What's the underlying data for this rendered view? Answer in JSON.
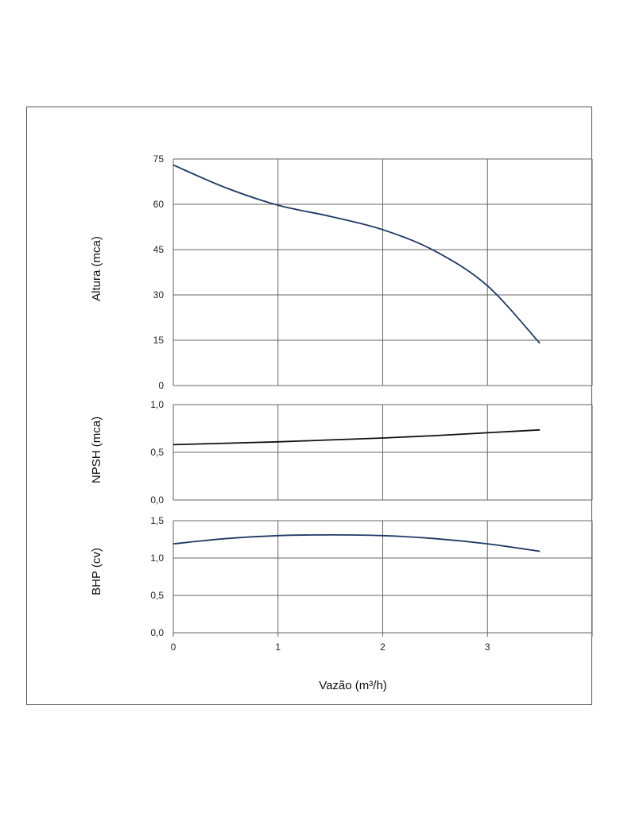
{
  "chart_data": [
    {
      "type": "line",
      "ylabel": "Altura (mca)",
      "ylim": [
        0,
        75
      ],
      "yticks": [
        "0",
        "15",
        "30",
        "45",
        "60",
        "75"
      ],
      "ytick_values": [
        0,
        15,
        30,
        45,
        60,
        75
      ],
      "xlim": [
        0,
        4
      ],
      "color": "#1f3864",
      "x": [
        0,
        0.5,
        1,
        1.5,
        2,
        2.5,
        3,
        3.5
      ],
      "y": [
        73,
        65.5,
        59.7,
        56,
        51.6,
        44.5,
        33,
        14
      ],
      "grid": true
    },
    {
      "type": "line",
      "ylabel": "NPSH (mca)",
      "ylim": [
        0,
        1
      ],
      "yticks": [
        "0,0",
        "0,5",
        "1,0"
      ],
      "ytick_values": [
        0,
        0.5,
        1
      ],
      "xlim": [
        0,
        4
      ],
      "color": "#111111",
      "x": [
        0,
        0.5,
        1,
        1.5,
        2,
        2.5,
        3,
        3.5
      ],
      "y": [
        0.58,
        0.595,
        0.61,
        0.63,
        0.65,
        0.675,
        0.705,
        0.735
      ],
      "grid": true
    },
    {
      "type": "line",
      "ylabel": "BHP (cv)",
      "xlabel": "Vazão (m³/h)",
      "ylim": [
        0,
        1.5
      ],
      "yticks": [
        "0,0",
        "0,5",
        "1,0",
        "1,5"
      ],
      "ytick_values": [
        0,
        0.5,
        1,
        1.5
      ],
      "xlim": [
        0,
        4
      ],
      "xticks": [
        "0",
        "1",
        "2",
        "3"
      ],
      "xtick_values": [
        0,
        1,
        2,
        3
      ],
      "color": "#1f3864",
      "x": [
        0,
        0.5,
        1,
        1.5,
        2,
        2.5,
        3,
        3.5
      ],
      "y": [
        1.19,
        1.26,
        1.3,
        1.31,
        1.3,
        1.26,
        1.19,
        1.09
      ],
      "grid": true
    }
  ]
}
